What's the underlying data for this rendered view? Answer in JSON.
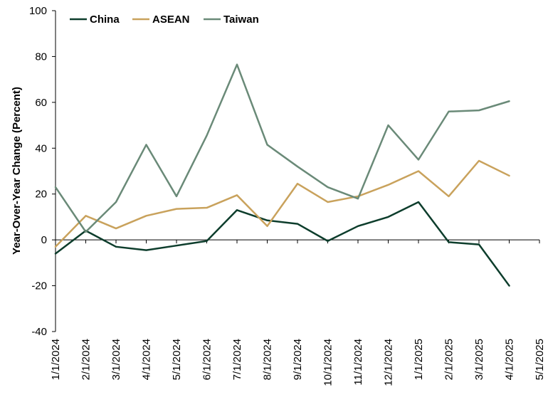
{
  "chart_data": {
    "type": "line",
    "title": "",
    "xlabel": "",
    "ylabel": "Year-Over-Year Change (Percent)",
    "ylim": [
      -40,
      100
    ],
    "yticks": [
      "-40",
      "-20",
      "0",
      "20",
      "40",
      "60",
      "80",
      "100"
    ],
    "x": [
      "1/1/2024",
      "2/1/2024",
      "3/1/2024",
      "4/1/2024",
      "5/1/2024",
      "6/1/2024",
      "7/1/2024",
      "8/1/2024",
      "9/1/2024",
      "10/1/2024",
      "11/1/2024",
      "12/1/2024",
      "1/1/2025",
      "2/1/2025",
      "3/1/2025",
      "4/1/2025",
      "5/1/2025"
    ],
    "grid": false,
    "legend_position": "top-left",
    "series": [
      {
        "name": "China",
        "color": "#0d3d2c",
        "values": [
          -6,
          4,
          -3,
          -4.5,
          -2.5,
          -0.5,
          13,
          8.5,
          7,
          -0.5,
          6,
          10,
          16.5,
          -1,
          -2,
          -20,
          null
        ]
      },
      {
        "name": "ASEAN",
        "color": "#c9a25c",
        "values": [
          -3,
          10.5,
          5,
          10.5,
          13.5,
          14,
          19.5,
          6,
          24.5,
          16.5,
          19,
          24,
          30,
          19,
          34.5,
          28,
          null
        ]
      },
      {
        "name": "Taiwan",
        "color": "#6a8a78",
        "values": [
          23,
          3.5,
          16.5,
          41.5,
          19,
          45.5,
          76.5,
          41.5,
          32,
          23,
          18,
          50,
          35,
          56,
          56.5,
          60.5,
          null
        ]
      }
    ]
  }
}
